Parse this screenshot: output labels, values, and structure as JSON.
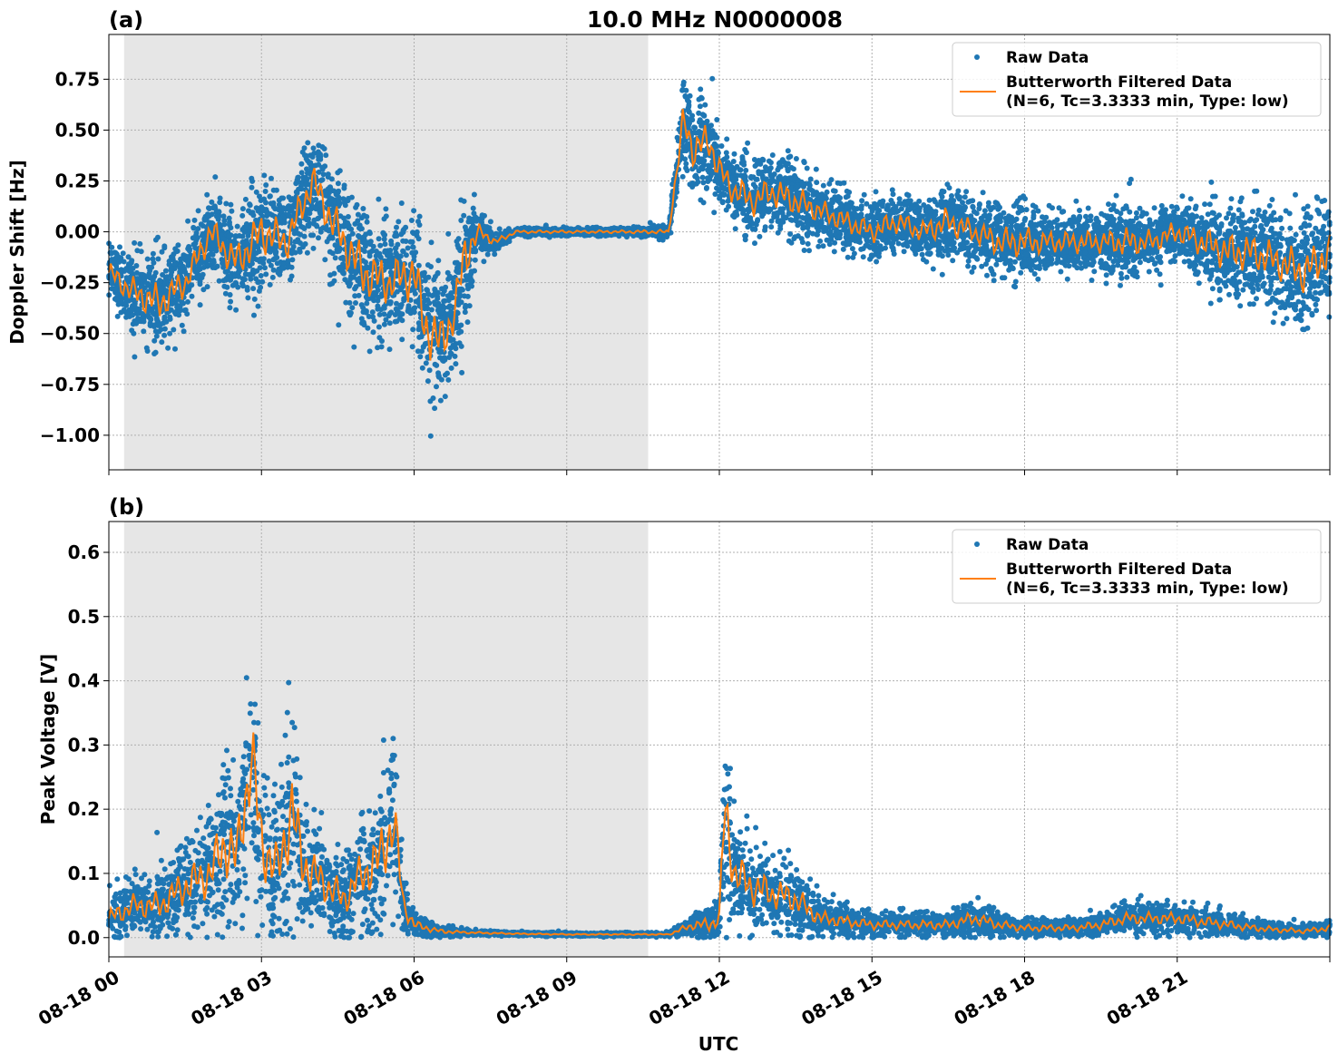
{
  "figure": {
    "title": "10.0 MHz N0000008",
    "xlabel": "UTC",
    "x_tick_labels": [
      "08-18 00",
      "08-18 03",
      "08-18 06",
      "08-18 09",
      "08-18 12",
      "08-18 15",
      "08-18 18",
      "08-18 21"
    ],
    "colors": {
      "raw": "#1f77b4",
      "filtered": "#ff7f0e",
      "shade": "#e6e6e6",
      "grid": "#b0b0b0"
    }
  },
  "chart_data": [
    {
      "type": "scatter",
      "panel_label": "(a)",
      "ylabel": "Doppler Shift [Hz]",
      "xlabel": "UTC",
      "x_unit": "hours since 2018-08-18 00:00 UTC",
      "xlim": [
        0,
        24
      ],
      "ylim": [
        -1.17,
        0.97
      ],
      "y_ticks": [
        -1.0,
        -0.75,
        -0.5,
        -0.25,
        0.0,
        0.25,
        0.5,
        0.75
      ],
      "y_tick_labels": [
        "−1.00",
        "−0.75",
        "−0.50",
        "−0.25",
        "0.00",
        "0.25",
        "0.50",
        "0.75"
      ],
      "shaded_x_range": [
        0.3,
        10.6
      ],
      "grid": true,
      "legend_position": "top-right",
      "legend": [
        "Raw Data",
        "Butterworth Filtered Data",
        "(N=6, Tc=3.3333 min, Type: low)"
      ],
      "series": [
        {
          "name": "Raw Data",
          "style": "points",
          "x": [
            0.0,
            0.5,
            1.0,
            1.5,
            2.0,
            2.5,
            3.0,
            3.5,
            4.0,
            4.5,
            5.0,
            5.5,
            6.0,
            6.2,
            6.5,
            6.8,
            7.0,
            7.3,
            7.6,
            8.0,
            9.0,
            10.0,
            11.0,
            11.3,
            11.5,
            11.8,
            12.0,
            12.3,
            12.7,
            13.0,
            13.5,
            14.0,
            14.5,
            15.0,
            15.5,
            16.0,
            16.5,
            17.0,
            17.5,
            18.0,
            18.5,
            19.0,
            19.5,
            20.0,
            20.5,
            21.0,
            21.5,
            22.0,
            22.5,
            23.0,
            23.5,
            24.0
          ],
          "y_center": [
            -0.2,
            -0.3,
            -0.35,
            -0.25,
            0.0,
            -0.15,
            0.0,
            -0.05,
            0.25,
            0.0,
            -0.2,
            -0.25,
            -0.2,
            -0.45,
            -0.55,
            -0.4,
            -0.1,
            0.0,
            -0.05,
            0.0,
            0.0,
            0.0,
            0.0,
            0.55,
            0.4,
            0.45,
            0.3,
            0.2,
            0.15,
            0.2,
            0.15,
            0.1,
            0.05,
            0.0,
            0.05,
            0.0,
            0.05,
            0.0,
            -0.05,
            -0.05,
            -0.05,
            -0.05,
            -0.05,
            -0.05,
            -0.05,
            0.0,
            -0.05,
            -0.1,
            -0.1,
            -0.15,
            -0.2,
            -0.1
          ],
          "y_spread": [
            0.15,
            0.2,
            0.25,
            0.2,
            0.2,
            0.25,
            0.3,
            0.25,
            0.25,
            0.3,
            0.35,
            0.3,
            0.35,
            0.4,
            0.35,
            0.3,
            0.35,
            0.1,
            0.05,
            0.02,
            0.02,
            0.02,
            0.03,
            0.25,
            0.25,
            0.25,
            0.2,
            0.2,
            0.2,
            0.2,
            0.2,
            0.15,
            0.15,
            0.15,
            0.15,
            0.15,
            0.2,
            0.15,
            0.2,
            0.2,
            0.15,
            0.15,
            0.15,
            0.2,
            0.15,
            0.15,
            0.2,
            0.25,
            0.25,
            0.25,
            0.3,
            0.25
          ]
        },
        {
          "name": "Butterworth Filtered Data",
          "style": "line",
          "x": [
            0.0,
            0.5,
            1.0,
            1.5,
            2.0,
            2.5,
            3.0,
            3.5,
            4.0,
            4.5,
            5.0,
            5.5,
            6.0,
            6.2,
            6.5,
            6.8,
            7.0,
            7.3,
            7.6,
            8.0,
            9.0,
            10.0,
            11.0,
            11.3,
            11.5,
            11.8,
            12.0,
            12.3,
            12.7,
            13.0,
            13.5,
            14.0,
            14.5,
            15.0,
            15.5,
            16.0,
            16.5,
            17.0,
            17.5,
            18.0,
            18.5,
            19.0,
            19.5,
            20.0,
            20.5,
            21.0,
            21.5,
            22.0,
            22.5,
            23.0,
            23.5,
            24.0
          ],
          "y": [
            -0.2,
            -0.3,
            -0.35,
            -0.25,
            0.0,
            -0.15,
            0.0,
            -0.05,
            0.25,
            0.0,
            -0.2,
            -0.25,
            -0.2,
            -0.45,
            -0.55,
            -0.4,
            -0.1,
            0.0,
            -0.05,
            0.0,
            0.0,
            0.0,
            0.0,
            0.55,
            0.4,
            0.45,
            0.3,
            0.2,
            0.15,
            0.2,
            0.15,
            0.1,
            0.05,
            0.0,
            0.05,
            0.0,
            0.05,
            0.0,
            -0.05,
            -0.05,
            -0.05,
            -0.05,
            -0.05,
            -0.05,
            -0.05,
            0.0,
            -0.05,
            -0.1,
            -0.1,
            -0.15,
            -0.2,
            -0.1
          ]
        }
      ]
    },
    {
      "type": "scatter",
      "panel_label": "(b)",
      "ylabel": "Peak Voltage [V]",
      "xlabel": "UTC",
      "x_unit": "hours since 2018-08-18 00:00 UTC",
      "xlim": [
        0,
        24
      ],
      "ylim": [
        -0.03,
        0.648
      ],
      "y_ticks": [
        0.0,
        0.1,
        0.2,
        0.3,
        0.4,
        0.5,
        0.6
      ],
      "y_tick_labels": [
        "0.0",
        "0.1",
        "0.2",
        "0.3",
        "0.4",
        "0.5",
        "0.6"
      ],
      "shaded_x_range": [
        0.3,
        10.6
      ],
      "grid": true,
      "legend_position": "top-right",
      "legend": [
        "Raw Data",
        "Butterworth Filtered Data",
        "(N=6, Tc=3.3333 min, Type: low)"
      ],
      "series": [
        {
          "name": "Raw Data",
          "style": "points",
          "x": [
            0.0,
            0.5,
            1.0,
            1.5,
            2.0,
            2.3,
            2.5,
            2.8,
            3.0,
            3.3,
            3.6,
            3.8,
            4.0,
            4.3,
            4.6,
            5.0,
            5.3,
            5.6,
            5.8,
            6.0,
            6.5,
            7.0,
            8.0,
            9.0,
            10.0,
            11.0,
            11.5,
            11.8,
            12.0,
            12.1,
            12.3,
            12.6,
            13.0,
            13.5,
            13.8,
            14.0,
            14.5,
            15.0,
            16.0,
            16.5,
            17.0,
            17.5,
            18.0,
            19.0,
            19.5,
            20.0,
            20.5,
            21.0,
            21.5,
            22.0,
            22.5,
            23.0,
            23.5,
            24.0
          ],
          "y_center": [
            0.03,
            0.05,
            0.05,
            0.08,
            0.1,
            0.15,
            0.12,
            0.28,
            0.15,
            0.1,
            0.2,
            0.12,
            0.1,
            0.08,
            0.06,
            0.1,
            0.12,
            0.18,
            0.05,
            0.02,
            0.01,
            0.008,
            0.006,
            0.005,
            0.005,
            0.005,
            0.02,
            0.02,
            0.03,
            0.2,
            0.1,
            0.08,
            0.07,
            0.06,
            0.04,
            0.03,
            0.025,
            0.02,
            0.02,
            0.02,
            0.03,
            0.02,
            0.015,
            0.015,
            0.02,
            0.03,
            0.03,
            0.03,
            0.025,
            0.02,
            0.015,
            0.012,
            0.01,
            0.015
          ],
          "y_spread": [
            0.04,
            0.05,
            0.06,
            0.08,
            0.1,
            0.15,
            0.12,
            0.2,
            0.15,
            0.12,
            0.18,
            0.12,
            0.1,
            0.08,
            0.07,
            0.1,
            0.12,
            0.15,
            0.05,
            0.02,
            0.01,
            0.005,
            0.003,
            0.003,
            0.003,
            0.003,
            0.02,
            0.03,
            0.04,
            0.15,
            0.1,
            0.08,
            0.07,
            0.06,
            0.04,
            0.03,
            0.025,
            0.02,
            0.02,
            0.02,
            0.03,
            0.02,
            0.015,
            0.015,
            0.02,
            0.025,
            0.025,
            0.025,
            0.025,
            0.02,
            0.015,
            0.012,
            0.01,
            0.015
          ]
        },
        {
          "name": "Butterworth Filtered Data",
          "style": "line",
          "x": [
            0.0,
            0.5,
            1.0,
            1.5,
            2.0,
            2.3,
            2.5,
            2.8,
            3.0,
            3.3,
            3.6,
            3.8,
            4.0,
            4.3,
            4.6,
            5.0,
            5.3,
            5.6,
            5.8,
            6.0,
            6.5,
            7.0,
            8.0,
            9.0,
            10.0,
            11.0,
            11.5,
            11.8,
            12.0,
            12.1,
            12.3,
            12.6,
            13.0,
            13.5,
            13.8,
            14.0,
            14.5,
            15.0,
            16.0,
            16.5,
            17.0,
            17.5,
            18.0,
            19.0,
            19.5,
            20.0,
            20.5,
            21.0,
            21.5,
            22.0,
            22.5,
            23.0,
            23.5,
            24.0
          ],
          "y": [
            0.03,
            0.05,
            0.05,
            0.08,
            0.1,
            0.15,
            0.12,
            0.28,
            0.15,
            0.1,
            0.2,
            0.12,
            0.1,
            0.08,
            0.06,
            0.1,
            0.12,
            0.18,
            0.05,
            0.02,
            0.01,
            0.008,
            0.006,
            0.005,
            0.005,
            0.005,
            0.02,
            0.02,
            0.03,
            0.2,
            0.1,
            0.08,
            0.07,
            0.06,
            0.04,
            0.03,
            0.025,
            0.02,
            0.02,
            0.02,
            0.03,
            0.02,
            0.015,
            0.015,
            0.02,
            0.03,
            0.03,
            0.03,
            0.025,
            0.02,
            0.015,
            0.012,
            0.01,
            0.015
          ]
        }
      ]
    }
  ]
}
